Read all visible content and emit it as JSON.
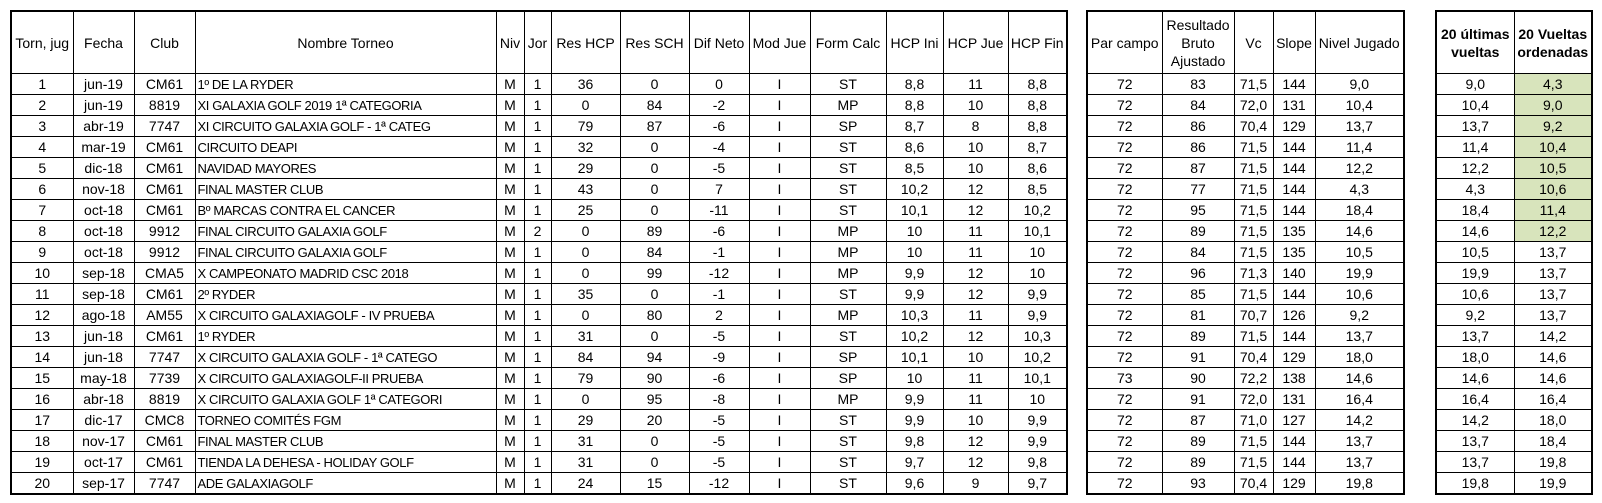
{
  "table_main": {
    "headers": [
      "Torn, jug",
      "Fecha",
      "Club",
      "Nombre Torneo",
      "Niv",
      "Jor",
      "Res HCP",
      "Res SCH",
      "Dif Neto",
      "Mod Jue",
      "Form Calc",
      "HCP Ini",
      "HCP Jue",
      "HCP Fin"
    ],
    "rows": [
      [
        "1",
        "jun-19",
        "CM61",
        "1º DE LA RYDER",
        "M",
        "1",
        "36",
        "0",
        "0",
        "I",
        "ST",
        "8,8",
        "11",
        "8,8"
      ],
      [
        "2",
        "jun-19",
        "8819",
        "XI GALAXIA GOLF 2019 1ª CATEGORIA",
        "M",
        "1",
        "0",
        "84",
        "-2",
        "I",
        "MP",
        "8,8",
        "10",
        "8,8"
      ],
      [
        "3",
        "abr-19",
        "7747",
        "XI CIRCUITO GALAXIA GOLF - 1ª CATEG",
        "M",
        "1",
        "79",
        "87",
        "-6",
        "I",
        "SP",
        "8,7",
        "8",
        "8,8"
      ],
      [
        "4",
        "mar-19",
        "CM61",
        "CIRCUITO DEAPI",
        "M",
        "1",
        "32",
        "0",
        "-4",
        "I",
        "ST",
        "8,6",
        "10",
        "8,7"
      ],
      [
        "5",
        "dic-18",
        "CM61",
        "NAVIDAD MAYORES",
        "M",
        "1",
        "29",
        "0",
        "-5",
        "I",
        "ST",
        "8,5",
        "10",
        "8,6"
      ],
      [
        "6",
        "nov-18",
        "CM61",
        "FINAL MASTER CLUB",
        "M",
        "1",
        "43",
        "0",
        "7",
        "I",
        "ST",
        "10,2",
        "12",
        "8,5"
      ],
      [
        "7",
        "oct-18",
        "CM61",
        "Bº MARCAS CONTRA EL CANCER",
        "M",
        "1",
        "25",
        "0",
        "-11",
        "I",
        "ST",
        "10,1",
        "12",
        "10,2"
      ],
      [
        "8",
        "oct-18",
        "9912",
        "FINAL CIRCUITO GALAXIA GOLF",
        "M",
        "2",
        "0",
        "89",
        "-6",
        "I",
        "MP",
        "10",
        "11",
        "10,1"
      ],
      [
        "9",
        "oct-18",
        "9912",
        "FINAL CIRCUITO GALAXIA GOLF",
        "M",
        "1",
        "0",
        "84",
        "-1",
        "I",
        "MP",
        "10",
        "11",
        "10"
      ],
      [
        "10",
        "sep-18",
        "CMA5",
        "X CAMPEONATO MADRID CSC 2018",
        "M",
        "1",
        "0",
        "99",
        "-12",
        "I",
        "MP",
        "9,9",
        "12",
        "10"
      ],
      [
        "11",
        "sep-18",
        "CM61",
        "2º RYDER",
        "M",
        "1",
        "35",
        "0",
        "-1",
        "I",
        "ST",
        "9,9",
        "12",
        "9,9"
      ],
      [
        "12",
        "ago-18",
        "AM55",
        "X CIRCUITO GALAXIAGOLF - IV PRUEBA",
        "M",
        "1",
        "0",
        "80",
        "2",
        "I",
        "MP",
        "10,3",
        "11",
        "9,9"
      ],
      [
        "13",
        "jun-18",
        "CM61",
        "1º RYDER",
        "M",
        "1",
        "31",
        "0",
        "-5",
        "I",
        "ST",
        "10,2",
        "12",
        "10,3"
      ],
      [
        "14",
        "jun-18",
        "7747",
        "X CIRCUITO GALAXIA GOLF - 1ª CATEGO",
        "M",
        "1",
        "84",
        "94",
        "-9",
        "I",
        "SP",
        "10,1",
        "10",
        "10,2"
      ],
      [
        "15",
        "may-18",
        "7739",
        "X CIRCUITO GALAXIAGOLF-II PRUEBA",
        "M",
        "1",
        "79",
        "90",
        "-6",
        "I",
        "SP",
        "10",
        "11",
        "10,1"
      ],
      [
        "16",
        "abr-18",
        "8819",
        "X CIRCUITO GALAXIA GOLF 1ª CATEGORI",
        "M",
        "1",
        "0",
        "95",
        "-8",
        "I",
        "MP",
        "9,9",
        "11",
        "10"
      ],
      [
        "17",
        "dic-17",
        "CMC8",
        "TORNEO COMITÉS FGM",
        "M",
        "1",
        "29",
        "20",
        "-5",
        "I",
        "ST",
        "9,9",
        "10",
        "9,9"
      ],
      [
        "18",
        "nov-17",
        "CM61",
        "FINAL MASTER CLUB",
        "M",
        "1",
        "31",
        "0",
        "-5",
        "I",
        "ST",
        "9,8",
        "12",
        "9,9"
      ],
      [
        "19",
        "oct-17",
        "CM61",
        "TIENDA LA DEHESA - HOLIDAY GOLF",
        "M",
        "1",
        "31",
        "0",
        "-5",
        "I",
        "ST",
        "9,7",
        "12",
        "9,8"
      ],
      [
        "20",
        "sep-17",
        "7747",
        "ADE GALAXIAGOLF",
        "M",
        "1",
        "24",
        "15",
        "-12",
        "I",
        "ST",
        "9,6",
        "9",
        "9,7"
      ]
    ]
  },
  "table_level": {
    "headers": [
      "Par campo",
      "Resultado Bruto Ajustado",
      "Vc",
      "Slope",
      "Nivel Jugado"
    ],
    "rows": [
      [
        "72",
        "83",
        "71,5",
        "144",
        "9,0"
      ],
      [
        "72",
        "84",
        "72,0",
        "131",
        "10,4"
      ],
      [
        "72",
        "86",
        "70,4",
        "129",
        "13,7"
      ],
      [
        "72",
        "86",
        "71,5",
        "144",
        "11,4"
      ],
      [
        "72",
        "87",
        "71,5",
        "144",
        "12,2"
      ],
      [
        "72",
        "77",
        "71,5",
        "144",
        "4,3"
      ],
      [
        "72",
        "95",
        "71,5",
        "144",
        "18,4"
      ],
      [
        "72",
        "89",
        "71,5",
        "135",
        "14,6"
      ],
      [
        "72",
        "84",
        "71,5",
        "135",
        "10,5"
      ],
      [
        "72",
        "96",
        "71,3",
        "140",
        "19,9"
      ],
      [
        "72",
        "85",
        "71,5",
        "144",
        "10,6"
      ],
      [
        "72",
        "81",
        "70,7",
        "126",
        "9,2"
      ],
      [
        "72",
        "89",
        "71,5",
        "144",
        "13,7"
      ],
      [
        "72",
        "91",
        "70,4",
        "129",
        "18,0"
      ],
      [
        "73",
        "90",
        "72,2",
        "138",
        "14,6"
      ],
      [
        "72",
        "91",
        "72,0",
        "131",
        "16,4"
      ],
      [
        "72",
        "87",
        "71,0",
        "127",
        "14,2"
      ],
      [
        "72",
        "89",
        "71,5",
        "144",
        "13,7"
      ],
      [
        "72",
        "89",
        "71,5",
        "144",
        "13,7"
      ],
      [
        "72",
        "93",
        "70,4",
        "129",
        "19,8"
      ]
    ]
  },
  "table_rounds": {
    "headers": [
      "20 últimas vueltas",
      "20 Vueltas ordenadas"
    ],
    "highlight_color": "#D8E4BC",
    "highlighted_count": 8,
    "rows": [
      [
        "9,0",
        "4,3"
      ],
      [
        "10,4",
        "9,0"
      ],
      [
        "13,7",
        "9,2"
      ],
      [
        "11,4",
        "10,4"
      ],
      [
        "12,2",
        "10,5"
      ],
      [
        "4,3",
        "10,6"
      ],
      [
        "18,4",
        "11,4"
      ],
      [
        "14,6",
        "12,2"
      ],
      [
        "10,5",
        "13,7"
      ],
      [
        "19,9",
        "13,7"
      ],
      [
        "10,6",
        "13,7"
      ],
      [
        "9,2",
        "13,7"
      ],
      [
        "13,7",
        "14,2"
      ],
      [
        "18,0",
        "14,6"
      ],
      [
        "14,6",
        "14,6"
      ],
      [
        "16,4",
        "16,4"
      ],
      [
        "14,2",
        "18,0"
      ],
      [
        "13,7",
        "18,4"
      ],
      [
        "13,7",
        "19,8"
      ],
      [
        "19,8",
        "19,9"
      ]
    ]
  }
}
